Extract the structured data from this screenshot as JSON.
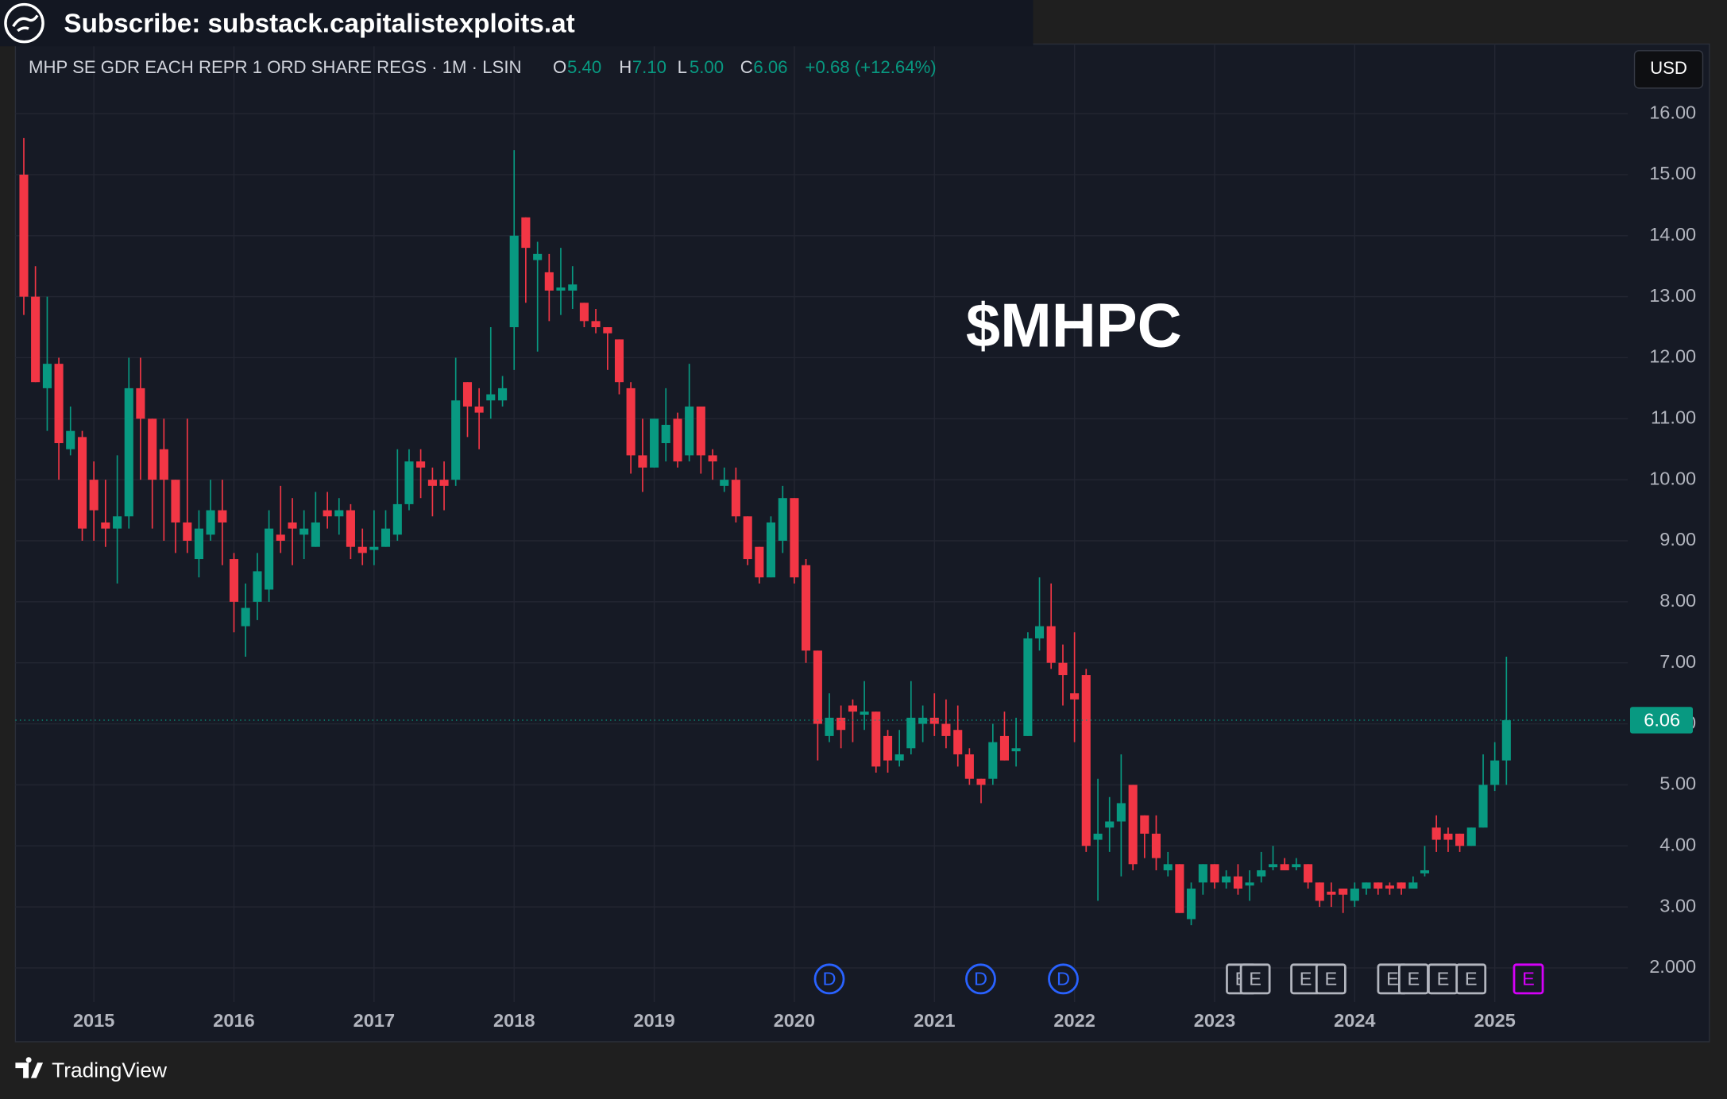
{
  "header": {
    "banner": "Subscribe: substack.capitalistexploits.at",
    "symbol": "MHP SE GDR EACH REPR 1 ORD SHARE REGS · 1M · LSIN",
    "ohlc": [
      [
        "O",
        "5.40"
      ],
      [
        "H",
        "7.10"
      ],
      [
        "L",
        "5.00"
      ],
      [
        "C",
        "6.06"
      ]
    ],
    "change": "+0.68 (+12.64%)",
    "currency": "USD",
    "brand": "TradingView"
  },
  "chart_data": {
    "type": "candlestick",
    "title": "$MHPC",
    "up_color": "#089981",
    "down_color": "#f23645",
    "grid": true,
    "xlim": [
      2014.44,
      2025.95
    ],
    "xticks": [
      2015,
      2016,
      2017,
      2018,
      2019,
      2020,
      2021,
      2022,
      2023,
      2024,
      2025
    ],
    "ylim": [
      1.44,
      17.14
    ],
    "yticks": [
      {
        "value": 2,
        "label": "2.000"
      },
      {
        "value": 3,
        "label": "3.00"
      },
      {
        "value": 4,
        "label": "4.00"
      },
      {
        "value": 5,
        "label": "5.00"
      },
      {
        "value": 6,
        "label": "6.00"
      },
      {
        "value": 7,
        "label": "7.00"
      },
      {
        "value": 8,
        "label": "8.00"
      },
      {
        "value": 9,
        "label": "9.00"
      },
      {
        "value": 10,
        "label": "10.00"
      },
      {
        "value": 11,
        "label": "11.00"
      },
      {
        "value": 12,
        "label": "12.00"
      },
      {
        "value": 13,
        "label": "13.00"
      },
      {
        "value": 14,
        "label": "14.00"
      },
      {
        "value": 15,
        "label": "15.00"
      },
      {
        "value": 16,
        "label": "16.00"
      }
    ],
    "x": [
      2014.5,
      2014.583,
      2014.667,
      2014.75,
      2014.833,
      2014.917,
      2015,
      2015.083,
      2015.167,
      2015.25,
      2015.333,
      2015.417,
      2015.5,
      2015.583,
      2015.667,
      2015.75,
      2015.833,
      2015.917,
      2016,
      2016.083,
      2016.167,
      2016.25,
      2016.333,
      2016.417,
      2016.5,
      2016.583,
      2016.667,
      2016.75,
      2016.833,
      2016.917,
      2017,
      2017.083,
      2017.167,
      2017.25,
      2017.333,
      2017.417,
      2017.5,
      2017.583,
      2017.667,
      2017.75,
      2017.833,
      2017.917,
      2018,
      2018.083,
      2018.167,
      2018.25,
      2018.333,
      2018.417,
      2018.5,
      2018.583,
      2018.667,
      2018.75,
      2018.833,
      2018.917,
      2019,
      2019.083,
      2019.167,
      2019.25,
      2019.333,
      2019.417,
      2019.5,
      2019.583,
      2019.667,
      2019.75,
      2019.833,
      2019.917,
      2020,
      2020.083,
      2020.167,
      2020.25,
      2020.333,
      2020.417,
      2020.5,
      2020.583,
      2020.667,
      2020.75,
      2020.833,
      2020.917,
      2021,
      2021.083,
      2021.167,
      2021.25,
      2021.333,
      2021.417,
      2021.5,
      2021.583,
      2021.667,
      2021.75,
      2021.833,
      2021.917,
      2022,
      2022.083,
      2022.167,
      2022.25,
      2022.333,
      2022.417,
      2022.5,
      2022.583,
      2022.667,
      2022.75,
      2022.833,
      2022.917,
      2023,
      2023.083,
      2023.167,
      2023.25,
      2023.333,
      2023.417,
      2023.5,
      2023.583,
      2023.667,
      2023.75,
      2023.833,
      2023.917,
      2024,
      2024.083,
      2024.167,
      2024.25,
      2024.333,
      2024.417,
      2024.5,
      2024.583,
      2024.667,
      2024.75,
      2024.833,
      2024.917,
      2025,
      2025.083
    ],
    "open": [
      15.0,
      13.0,
      11.5,
      11.9,
      10.5,
      10.7,
      10.0,
      9.3,
      9.2,
      9.4,
      11.5,
      11.0,
      10.5,
      10.0,
      9.3,
      8.7,
      9.1,
      9.5,
      8.7,
      7.6,
      8.0,
      8.2,
      9.1,
      9.3,
      9.1,
      8.9,
      9.5,
      9.4,
      9.5,
      8.9,
      8.85,
      8.9,
      9.1,
      9.6,
      10.3,
      10.0,
      10.0,
      10.0,
      11.6,
      11.2,
      11.3,
      11.3,
      12.5,
      14.3,
      13.6,
      13.4,
      13.1,
      13.1,
      12.9,
      12.6,
      12.5,
      12.3,
      11.5,
      10.4,
      10.2,
      10.6,
      11.0,
      10.4,
      11.2,
      10.4,
      9.9,
      10.0,
      9.4,
      8.9,
      8.4,
      9.0,
      9.7,
      8.6,
      7.2,
      5.8,
      6.1,
      6.3,
      6.15,
      6.2,
      5.8,
      5.4,
      5.6,
      6.0,
      6.1,
      6.0,
      5.9,
      5.5,
      5.1,
      5.1,
      5.8,
      5.55,
      5.8,
      7.4,
      7.6,
      7.0,
      6.5,
      6.8,
      4.1,
      4.3,
      4.4,
      5.0,
      4.5,
      4.2,
      3.6,
      3.7,
      2.8,
      3.4,
      3.7,
      3.4,
      3.5,
      3.35,
      3.5,
      3.65,
      3.7,
      3.65,
      3.7,
      3.4,
      3.25,
      3.3,
      3.1,
      3.3,
      3.4,
      3.35,
      3.4,
      3.3,
      3.55,
      4.3,
      4.2,
      4.2,
      4.0,
      4.3,
      5.0,
      5.4
    ],
    "high": [
      15.6,
      13.5,
      13.0,
      12.0,
      11.2,
      10.8,
      10.3,
      10.0,
      10.4,
      12.0,
      12.0,
      11.0,
      11.0,
      10.0,
      11.0,
      9.5,
      10.0,
      10.0,
      8.8,
      8.3,
      8.8,
      9.5,
      9.9,
      9.7,
      9.5,
      9.8,
      9.8,
      9.7,
      9.6,
      9.2,
      9.5,
      9.5,
      10.5,
      10.5,
      10.5,
      10.2,
      10.3,
      12.0,
      11.6,
      11.5,
      12.5,
      11.7,
      15.4,
      14.3,
      13.9,
      13.7,
      13.8,
      13.5,
      12.9,
      12.8,
      12.5,
      12.3,
      11.6,
      11.0,
      11.0,
      11.5,
      11.1,
      11.9,
      11.2,
      10.5,
      10.2,
      10.2,
      9.4,
      8.9,
      9.4,
      9.9,
      9.7,
      8.7,
      7.2,
      6.5,
      6.3,
      6.4,
      6.7,
      6.2,
      5.9,
      5.9,
      6.7,
      6.3,
      6.5,
      6.4,
      6.3,
      5.6,
      5.1,
      6.0,
      6.2,
      6.1,
      7.5,
      8.4,
      8.3,
      7.3,
      7.5,
      6.9,
      5.1,
      4.8,
      5.5,
      5.0,
      4.5,
      4.5,
      3.9,
      3.7,
      3.4,
      3.7,
      3.7,
      3.6,
      3.7,
      3.6,
      3.9,
      4.0,
      3.8,
      3.8,
      3.7,
      3.4,
      3.4,
      3.3,
      3.4,
      3.4,
      3.4,
      3.4,
      3.4,
      3.5,
      4.0,
      4.5,
      4.3,
      4.2,
      4.3,
      5.5,
      5.7,
      7.1
    ],
    "low": [
      12.7,
      11.6,
      10.8,
      10.0,
      10.4,
      9.0,
      9.0,
      8.9,
      8.3,
      9.2,
      10.0,
      9.2,
      9.0,
      8.8,
      8.8,
      8.4,
      9.0,
      8.6,
      7.5,
      7.1,
      7.7,
      8.0,
      8.8,
      8.6,
      8.7,
      8.9,
      9.2,
      9.1,
      8.7,
      8.6,
      8.6,
      8.9,
      9.0,
      9.5,
      9.7,
      9.4,
      9.5,
      9.9,
      10.7,
      10.5,
      11.0,
      11.2,
      11.8,
      12.9,
      12.1,
      12.6,
      12.7,
      12.8,
      12.5,
      12.4,
      11.8,
      11.4,
      10.1,
      9.8,
      10.2,
      10.3,
      10.2,
      10.3,
      10.1,
      10.0,
      9.8,
      9.3,
      8.6,
      8.3,
      8.4,
      8.8,
      8.3,
      7.0,
      5.4,
      5.7,
      5.6,
      5.7,
      5.9,
      5.2,
      5.2,
      5.3,
      5.5,
      5.7,
      5.8,
      5.6,
      5.3,
      5.0,
      4.7,
      5.0,
      5.4,
      5.3,
      5.8,
      7.2,
      6.9,
      6.3,
      5.7,
      3.9,
      3.1,
      3.9,
      3.5,
      3.6,
      3.8,
      3.6,
      3.5,
      2.9,
      2.7,
      3.2,
      3.3,
      3.3,
      3.2,
      3.1,
      3.4,
      3.6,
      3.6,
      3.6,
      3.3,
      3.0,
      3.0,
      2.9,
      3.0,
      3.2,
      3.2,
      3.2,
      3.2,
      3.3,
      3.5,
      3.9,
      3.9,
      3.9,
      4.0,
      4.3,
      4.9,
      5.0
    ],
    "close": [
      13.0,
      11.6,
      11.9,
      10.6,
      10.8,
      9.2,
      9.5,
      9.2,
      9.4,
      11.5,
      11.0,
      10.0,
      10.0,
      9.3,
      9.0,
      9.2,
      9.5,
      9.3,
      8.0,
      7.9,
      8.5,
      9.2,
      9.0,
      9.2,
      9.2,
      9.3,
      9.4,
      9.5,
      8.9,
      8.8,
      8.9,
      9.2,
      9.6,
      10.3,
      10.2,
      9.9,
      9.9,
      11.3,
      11.2,
      11.1,
      11.4,
      11.5,
      14.0,
      13.8,
      13.7,
      13.1,
      13.15,
      13.2,
      12.6,
      12.5,
      12.4,
      11.6,
      10.4,
      10.2,
      11.0,
      10.9,
      10.3,
      11.2,
      10.4,
      10.3,
      10.0,
      9.4,
      8.7,
      8.4,
      9.3,
      9.7,
      8.4,
      7.2,
      6.0,
      6.1,
      5.9,
      6.2,
      6.2,
      5.3,
      5.4,
      5.5,
      6.1,
      6.1,
      6.0,
      5.8,
      5.5,
      5.1,
      5.0,
      5.7,
      5.4,
      5.6,
      7.4,
      7.6,
      7.0,
      6.8,
      6.4,
      4.0,
      4.2,
      4.4,
      4.7,
      3.7,
      4.2,
      3.8,
      3.7,
      2.9,
      3.3,
      3.7,
      3.4,
      3.5,
      3.3,
      3.4,
      3.6,
      3.7,
      3.6,
      3.7,
      3.4,
      3.1,
      3.2,
      3.2,
      3.3,
      3.4,
      3.3,
      3.3,
      3.3,
      3.4,
      3.6,
      4.1,
      4.1,
      4.0,
      4.3,
      5.0,
      5.4,
      6.06
    ],
    "events": [
      {
        "label": "D",
        "x": 2020.25,
        "shape": "circle",
        "color": "#2962ff"
      },
      {
        "label": "D",
        "x": 2021.33,
        "shape": "circle",
        "color": "#2962ff"
      },
      {
        "label": "D",
        "x": 2021.92,
        "shape": "circle",
        "color": "#2962ff"
      },
      {
        "label": "E",
        "x": 2023.19,
        "shape": "square",
        "color": "#b2b5be"
      },
      {
        "label": "E",
        "x": 2023.29,
        "shape": "square",
        "color": "#b2b5be"
      },
      {
        "label": "E",
        "x": 2023.65,
        "shape": "square",
        "color": "#b2b5be"
      },
      {
        "label": "E",
        "x": 2023.83,
        "shape": "square",
        "color": "#b2b5be"
      },
      {
        "label": "E",
        "x": 2024.27,
        "shape": "square",
        "color": "#b2b5be"
      },
      {
        "label": "E",
        "x": 2024.42,
        "shape": "square",
        "color": "#b2b5be"
      },
      {
        "label": "E",
        "x": 2024.63,
        "shape": "square",
        "color": "#b2b5be"
      },
      {
        "label": "E",
        "x": 2024.83,
        "shape": "square",
        "color": "#b2b5be"
      },
      {
        "label": "E",
        "x": 2025.24,
        "shape": "square",
        "color": "#d500f9"
      }
    ]
  }
}
